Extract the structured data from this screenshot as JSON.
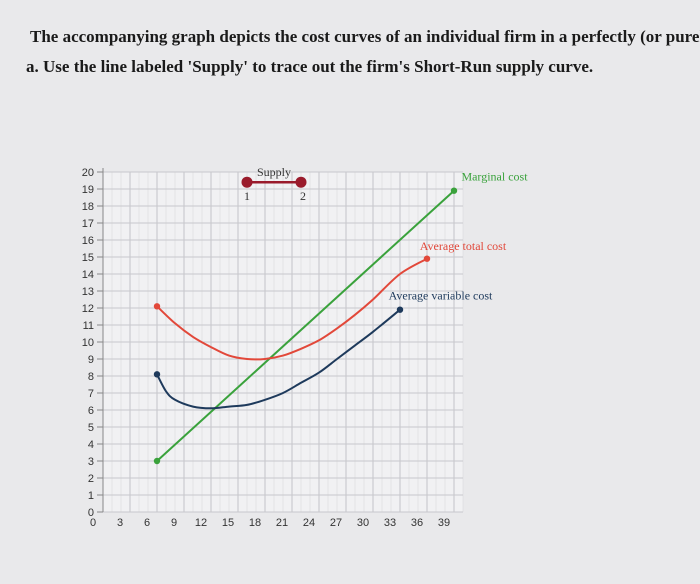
{
  "question": {
    "line1": "The accompanying graph depicts the cost curves of an individual firm in a perfectly (or purely)",
    "line2": "a. Use the line labeled 'Supply' to trace out the firm's Short-Run supply curve."
  },
  "chart_data": {
    "type": "line",
    "title": "",
    "xlabel": "",
    "ylabel": "",
    "xlim": [
      0,
      40
    ],
    "ylim": [
      0,
      20
    ],
    "xticks": [
      0,
      3,
      6,
      9,
      12,
      15,
      18,
      21,
      24,
      27,
      30,
      33,
      36,
      39
    ],
    "yticks": [
      0,
      1,
      2,
      3,
      4,
      5,
      6,
      7,
      8,
      9,
      10,
      11,
      12,
      13,
      14,
      15,
      16,
      17,
      18,
      19,
      20
    ],
    "grid": true,
    "colors": {
      "marginal_cost": "#3aa23c",
      "average_total_cost": "#e2483a",
      "average_variable_cost": "#1e3a5c",
      "supply": "#9a1b2c"
    },
    "series": [
      {
        "name": "Marginal cost",
        "key": "marginal_cost",
        "x": [
          6,
          39
        ],
        "y": [
          3,
          18.9
        ]
      },
      {
        "name": "Average total cost",
        "key": "average_total_cost",
        "x": [
          6,
          8,
          10,
          12,
          14,
          16,
          18,
          20,
          22,
          24,
          26,
          28,
          30,
          33,
          36
        ],
        "y": [
          12.1,
          11.1,
          10.3,
          9.7,
          9.2,
          9.0,
          9.0,
          9.2,
          9.6,
          10.1,
          10.8,
          11.6,
          12.5,
          14,
          14.9
        ]
      },
      {
        "name": "Average variable cost",
        "key": "average_variable_cost",
        "x": [
          6,
          7,
          8,
          10,
          12,
          14,
          16,
          18,
          20,
          22,
          24,
          26,
          28,
          30,
          33
        ],
        "y": [
          8.1,
          7.1,
          6.6,
          6.2,
          6.1,
          6.2,
          6.3,
          6.6,
          7.0,
          7.6,
          8.2,
          9.0,
          9.8,
          10.6,
          11.9
        ]
      }
    ],
    "supply": {
      "name": "Supply",
      "points": [
        {
          "label": "1",
          "x": 16,
          "y": 19.4
        },
        {
          "label": "2",
          "x": 22,
          "y": 19.4
        }
      ]
    },
    "labels": {
      "marginal_cost": {
        "text": "Marginal cost",
        "x": 43.5,
        "y": 19.5
      },
      "average_total_cost": {
        "text": "Average total cost",
        "x": 40,
        "y": 15.4
      },
      "average_variable_cost": {
        "text": "Average variable cost",
        "x": 37.5,
        "y": 12.5
      }
    }
  }
}
